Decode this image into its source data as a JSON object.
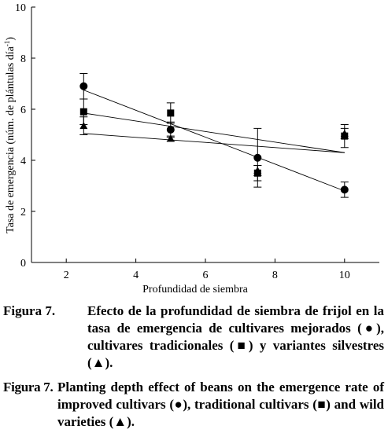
{
  "chart_data": {
    "type": "scatter",
    "xlabel": "Profundidad de siembra",
    "ylabel": "Tasa de emergencia (núm. de plántulas día",
    "ylabel_superscript": "-1",
    "ylabel_suffix": ")",
    "xlim": [
      1,
      11
    ],
    "ylim": [
      0,
      10
    ],
    "xticks": [
      2,
      4,
      6,
      8,
      10
    ],
    "yticks": [
      0,
      2,
      4,
      6,
      8,
      10
    ],
    "grid": false,
    "legend": "none (symbols described in caption)",
    "series": [
      {
        "marker": "circle",
        "x": [
          2.5,
          5,
          7.5,
          10
        ],
        "y": [
          6.9,
          5.2,
          4.1,
          2.85
        ],
        "err": [
          0.5,
          0.3,
          1.15,
          0.3
        ],
        "fit": {
          "x": [
            2.5,
            10
          ],
          "y": [
            6.75,
            2.8
          ]
        }
      },
      {
        "marker": "square",
        "x": [
          2.5,
          5,
          7.5,
          10
        ],
        "y": [
          5.9,
          5.85,
          3.5,
          4.95
        ],
        "err": [
          0.5,
          0.4,
          0.3,
          0.45
        ],
        "fit": {
          "x": [
            2.5,
            10
          ],
          "y": [
            5.85,
            4.3
          ]
        }
      },
      {
        "marker": "triangle",
        "x": [
          2.5,
          5,
          7.5,
          10
        ],
        "y": [
          5.35,
          4.85,
          3.6,
          5.05
        ],
        "err": [
          0.35,
          0.1,
          0.2,
          0.2
        ],
        "fit": {
          "x": [
            2.5,
            10
          ],
          "y": [
            5.05,
            4.3
          ]
        }
      }
    ]
  },
  "captions": {
    "es_label": "Figura 7.",
    "es_text": "Efecto de la profundidad de siembra de frijol en la tasa de emergencia de cultivares mejorados (●), cultivares tradicionales (■) y variantes silvestres (▲).",
    "en_label": "Figura 7.",
    "en_text": "Planting depth effect of beans on the emergence rate of improved cultivars (●), traditional cultivars (■) and wild varieties (▲)."
  }
}
